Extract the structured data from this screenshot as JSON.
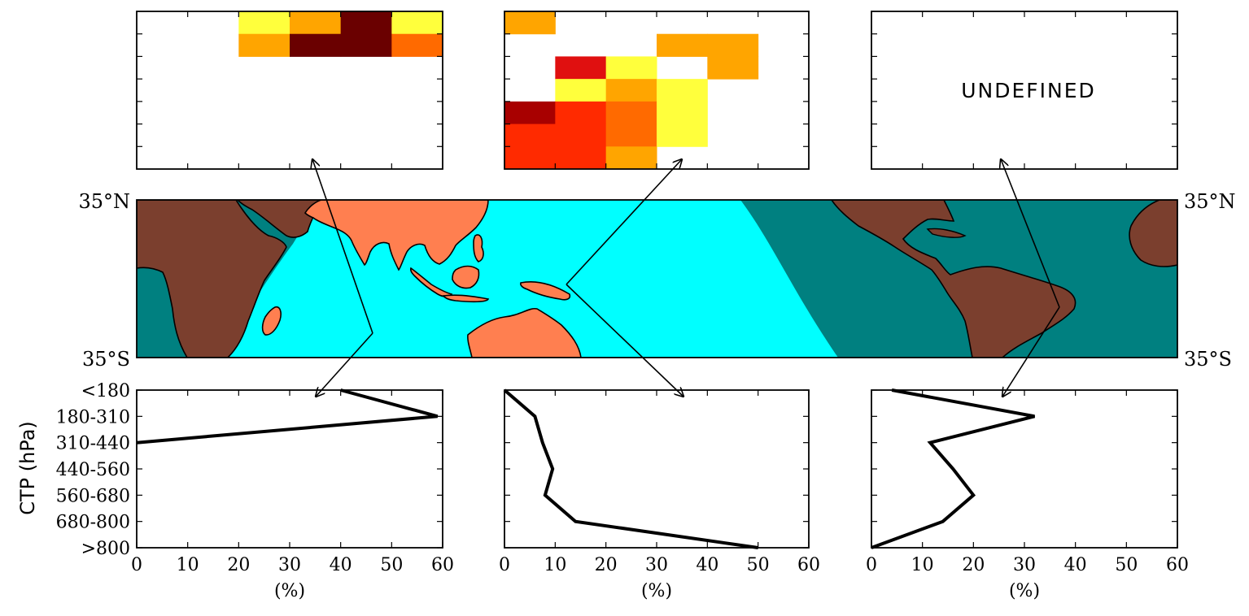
{
  "colors": {
    "ocean_tropical": "#00ffff",
    "ocean_other": "#008080",
    "land_tropical": "#ff7f50",
    "land_other": "#7b3f2e",
    "heat_light": "#ffff3c",
    "heat_orange": "#ffa500",
    "heat_dark_orange": "#ff6a00",
    "heat_red_orange": "#ff2a00",
    "heat_red": "#e01010",
    "heat_dark_red": "#a80000",
    "heat_darkest": "#6a0000"
  },
  "map": {
    "lat_labels": {
      "north_left": "35°N",
      "north_right": "35°N",
      "south_left": "35°S",
      "south_right": "35°S"
    }
  },
  "chart_data": [
    {
      "type": "heatmap",
      "panel": "top-left",
      "cells": [
        {
          "col": 2,
          "row": 0,
          "color": "heat_light"
        },
        {
          "col": 3,
          "row": 0,
          "color": "heat_orange"
        },
        {
          "col": 4,
          "row": 0,
          "color": "heat_darkest"
        },
        {
          "col": 5,
          "row": 0,
          "color": "heat_light"
        },
        {
          "col": 2,
          "row": 1,
          "color": "heat_orange"
        },
        {
          "col": 3,
          "row": 1,
          "color": "heat_darkest"
        },
        {
          "col": 4,
          "row": 1,
          "color": "heat_darkest"
        },
        {
          "col": 5,
          "row": 1,
          "color": "heat_dark_orange"
        }
      ]
    },
    {
      "type": "heatmap",
      "panel": "top-middle",
      "cells": [
        {
          "col": 0,
          "row": 0,
          "color": "heat_orange"
        },
        {
          "col": 3,
          "row": 1,
          "color": "heat_orange"
        },
        {
          "col": 4,
          "row": 1,
          "color": "heat_orange"
        },
        {
          "col": 1,
          "row": 2,
          "color": "heat_red"
        },
        {
          "col": 2,
          "row": 2,
          "color": "heat_light"
        },
        {
          "col": 4,
          "row": 2,
          "color": "heat_orange"
        },
        {
          "col": 1,
          "row": 3,
          "color": "heat_light"
        },
        {
          "col": 2,
          "row": 3,
          "color": "heat_orange"
        },
        {
          "col": 3,
          "row": 3,
          "color": "heat_light"
        },
        {
          "col": 0,
          "row": 4,
          "color": "heat_dark_red"
        },
        {
          "col": 1,
          "row": 4,
          "color": "heat_red_orange"
        },
        {
          "col": 2,
          "row": 4,
          "color": "heat_dark_orange"
        },
        {
          "col": 3,
          "row": 4,
          "color": "heat_light"
        },
        {
          "col": 0,
          "row": 5,
          "color": "heat_red_orange"
        },
        {
          "col": 1,
          "row": 5,
          "color": "heat_red_orange"
        },
        {
          "col": 2,
          "row": 5,
          "color": "heat_dark_orange"
        },
        {
          "col": 3,
          "row": 5,
          "color": "heat_light"
        },
        {
          "col": 0,
          "row": 6,
          "color": "heat_red_orange"
        },
        {
          "col": 1,
          "row": 6,
          "color": "heat_red_orange"
        },
        {
          "col": 2,
          "row": 6,
          "color": "heat_orange"
        }
      ]
    },
    {
      "type": "heatmap",
      "panel": "top-right",
      "annotation": "UNDEFINED",
      "cells": []
    },
    {
      "type": "line",
      "panel": "bottom-left",
      "categories": [
        "<180",
        "180-310",
        "310-440",
        "440-560",
        "560-680",
        "680-800",
        ">800"
      ],
      "values": [
        40,
        59,
        0,
        null,
        null,
        null,
        null
      ],
      "xlim": [
        0,
        60
      ],
      "xticks": [
        0,
        10,
        20,
        30,
        40,
        50,
        60
      ],
      "xlabel": "(%)",
      "ylabel": "CTP (hPa)"
    },
    {
      "type": "line",
      "panel": "bottom-middle",
      "categories": [
        "<180",
        "180-310",
        "310-440",
        "440-560",
        "560-680",
        "680-800",
        ">800"
      ],
      "values": [
        0,
        6,
        7.5,
        9.5,
        8,
        14,
        50
      ],
      "xlim": [
        0,
        60
      ],
      "xticks": [
        0,
        10,
        20,
        30,
        40,
        50,
        60
      ],
      "xlabel": "(%)"
    },
    {
      "type": "line",
      "panel": "bottom-right",
      "categories": [
        "<180",
        "180-310",
        "310-440",
        "440-560",
        "560-680",
        "680-800",
        ">800"
      ],
      "values": [
        4,
        32,
        11.5,
        16,
        20,
        14,
        0
      ],
      "xlim": [
        0,
        60
      ],
      "xticks": [
        0,
        10,
        20,
        30,
        40,
        50,
        60
      ],
      "xlabel": "(%)"
    }
  ]
}
